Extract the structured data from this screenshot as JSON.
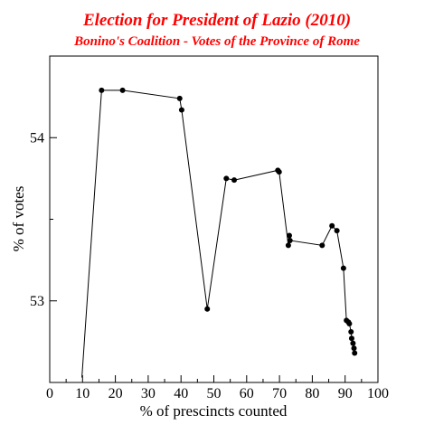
{
  "chart_data": {
    "type": "line",
    "title": "Election for President of Lazio (2010)",
    "subtitle": "Bonino's Coalition - Votes of the Province of Rome",
    "xlabel": "% of prescincts counted",
    "ylabel": "% of votes",
    "xlim": [
      0,
      100
    ],
    "ylim": [
      52.5,
      54.5
    ],
    "xticks": [
      0,
      10,
      20,
      30,
      40,
      50,
      60,
      70,
      80,
      90,
      100
    ],
    "yticks": [
      53,
      54
    ],
    "grid": false,
    "colors": {
      "title": "#ff0000",
      "line": "#000000",
      "marker": "#000000"
    },
    "series": [
      {
        "x": [
          9.8,
          15.8,
          22.2,
          39.6,
          40.2,
          48.0,
          53.8,
          56.2,
          69.5,
          69.9,
          72.7,
          73.0,
          73.2,
          83.0,
          86.0,
          87.5,
          89.5,
          90.4,
          91.0,
          91.3,
          91.8,
          92.0,
          92.4,
          92.7,
          92.9
        ],
        "y": [
          52.53,
          54.29,
          54.29,
          54.24,
          54.17,
          52.95,
          53.75,
          53.74,
          53.8,
          53.79,
          53.34,
          53.4,
          53.37,
          53.34,
          53.46,
          53.43,
          53.2,
          52.88,
          52.87,
          52.86,
          52.81,
          52.77,
          52.74,
          52.71,
          52.68
        ],
        "markers": [
          false,
          true,
          true,
          true,
          true,
          true,
          true,
          true,
          true,
          true,
          true,
          true,
          true,
          true,
          true,
          true,
          true,
          true,
          true,
          true,
          true,
          true,
          true,
          true,
          true
        ]
      }
    ]
  }
}
